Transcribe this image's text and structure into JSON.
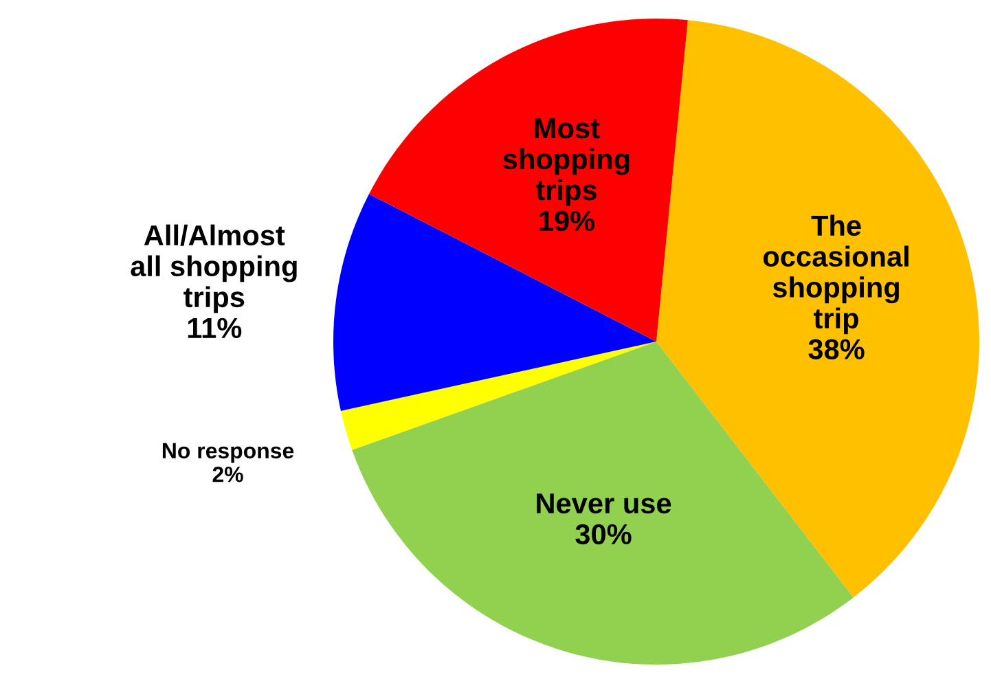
{
  "chart_data": {
    "type": "pie",
    "categories": [
      "The\noccasional\nshopping\ntrip",
      "Never use",
      "No response",
      "All/Almost\nall shopping\ntrips",
      "Most\nshopping\ntrips"
    ],
    "values": [
      38,
      30,
      2,
      11,
      19
    ],
    "colors": [
      "#ffc000",
      "#92d050",
      "#ffff00",
      "#0000ff",
      "#ff0000"
    ],
    "value_labels": [
      "38%",
      "30%",
      "2%",
      "11%",
      "19%"
    ]
  }
}
